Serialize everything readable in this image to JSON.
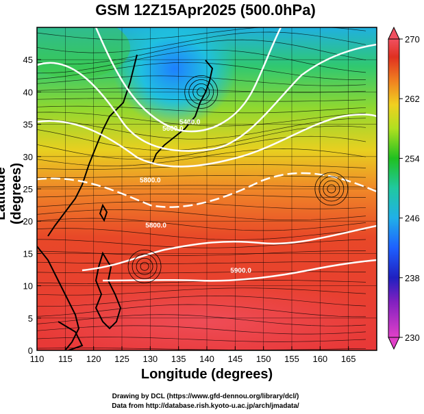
{
  "title": "GSM 12Z15Apr2025 (500.0hPa)",
  "xlabel": "Longitude (degrees)",
  "ylabel": "Latitude  (degrees)",
  "credit_line1": "Drawing by DCL (https://www.gfd-dennou.org/library/dcl/)",
  "credit_line2": "Data from http://database.rish.kyoto-u.ac.jp/arch/jmadata/",
  "chart_data": {
    "type": "heatmap",
    "xlim": [
      110,
      170
    ],
    "ylim": [
      0,
      50
    ],
    "x_ticks": [
      "110",
      "115",
      "120",
      "125",
      "130",
      "135",
      "140",
      "145",
      "150",
      "155",
      "160",
      "165"
    ],
    "y_ticks": [
      "0",
      "5",
      "10",
      "15",
      "20",
      "25",
      "30",
      "35",
      "40",
      "45"
    ],
    "grid": true,
    "colorbar": {
      "min": 230,
      "max": 270,
      "tick_labels": [
        "230",
        "238",
        "246",
        "254",
        "262",
        "270"
      ],
      "colors": [
        "#e040c8",
        "#2020c0",
        "#1e90ff",
        "#20c8c8",
        "#20c020",
        "#b0e020",
        "#f0d020",
        "#f08020",
        "#e03020",
        "#f05060"
      ]
    },
    "contour_labels": [
      {
        "text": "5400.0",
        "lon": 137,
        "lat": 35
      },
      {
        "text": "5600.0",
        "lon": 134,
        "lat": 34
      },
      {
        "text": "5800.0",
        "lon": 130,
        "lat": 26
      },
      {
        "text": "5800.0",
        "lon": 131,
        "lat": 19
      },
      {
        "text": "5900.0",
        "lon": 146,
        "lat": 12
      }
    ],
    "cyclones": [
      {
        "lon": 139,
        "lat": 40
      },
      {
        "lon": 162,
        "lat": 25
      },
      {
        "lon": 129,
        "lat": 13
      }
    ]
  }
}
